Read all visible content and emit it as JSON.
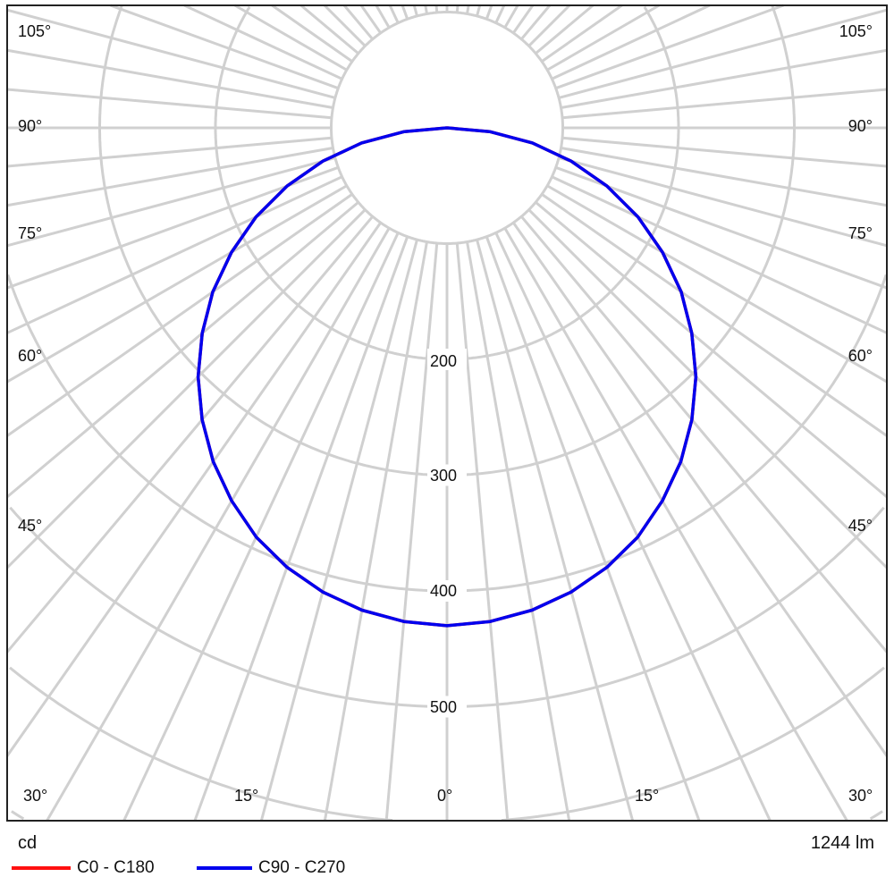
{
  "chart_data": {
    "type": "polar",
    "unit_label": "cd",
    "flux_label": "1244 lm",
    "radial_ticks": [
      200,
      300,
      400,
      500
    ],
    "radial_grid_step": 100,
    "angle_labels_sides": [
      "105°",
      "90°",
      "75°",
      "60°",
      "45°"
    ],
    "angle_labels_bottom": [
      "30°",
      "15°",
      "0°",
      "15°",
      "30°"
    ],
    "angular_grid_step_deg": 5,
    "grid": true,
    "legend_placement": "bottom-left",
    "angles_deg": [
      0,
      5,
      10,
      15,
      20,
      25,
      30,
      35,
      40,
      45,
      50,
      55,
      60,
      65,
      70,
      75,
      80,
      85,
      90
    ],
    "series": [
      {
        "name": "C0 - C180",
        "color": "#ff0000",
        "values": [
          430,
          428,
          423,
          415,
          404,
          390,
          372,
          352,
          329,
          304,
          276,
          247,
          215,
          182,
          147,
          111,
          75,
          37,
          0
        ]
      },
      {
        "name": "C90 - C270",
        "color": "#0000ee",
        "values": [
          430,
          428,
          423,
          415,
          404,
          390,
          372,
          352,
          329,
          304,
          276,
          247,
          215,
          182,
          147,
          111,
          75,
          37,
          0
        ]
      }
    ]
  }
}
